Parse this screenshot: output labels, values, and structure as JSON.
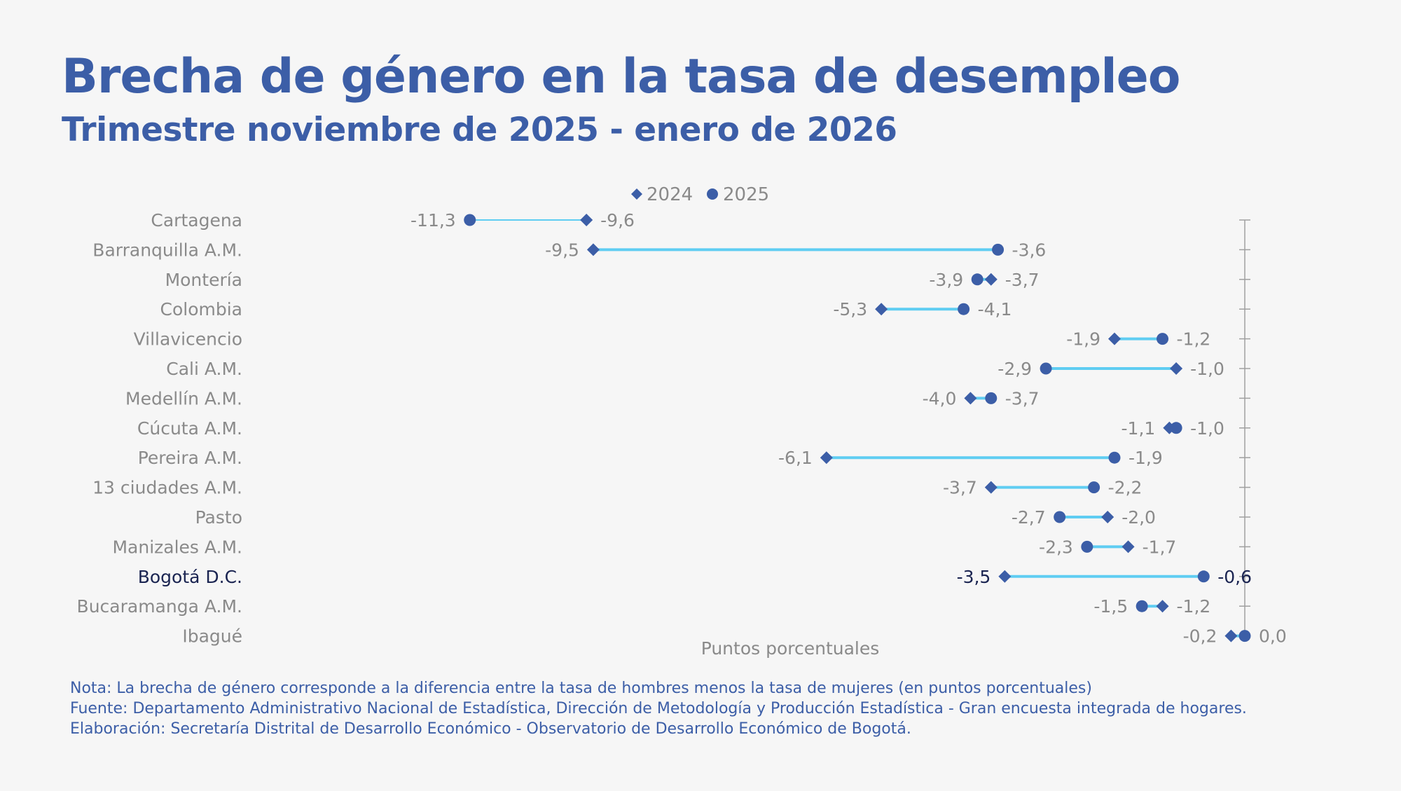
{
  "title": "Brecha de género en la tasa de desempleo",
  "subtitle": "Trimestre noviembre de 2025 - enero de 2026",
  "chart_data": {
    "type": "dumbbell",
    "xlabel": "Puntos porcentuales",
    "legend": [
      {
        "name": "2024",
        "marker": "diamond"
      },
      {
        "name": "2025",
        "marker": "circle"
      }
    ],
    "legend_position": "top-center",
    "grid": false,
    "categories": [
      "Cartagena",
      "Barranquilla A.M.",
      "Montería",
      "Colombia",
      "Villavicencio",
      "Cali A.M.",
      "Medellín A.M.",
      "Cúcuta A.M.",
      "Pereira A.M.",
      "13 ciudades A.M.",
      "Pasto",
      "Manizales A.M.",
      "Bogotá D.C.",
      "Bucaramanga A.M.",
      "Ibagué"
    ],
    "highlight": "Bogotá D.C.",
    "series": [
      {
        "name": "2024",
        "values": [
          -9.6,
          -9.5,
          -3.7,
          -5.3,
          -1.9,
          -1.0,
          -4.0,
          -1.1,
          -6.1,
          -3.7,
          -2.0,
          -1.7,
          -3.5,
          -1.2,
          -0.2
        ]
      },
      {
        "name": "2025",
        "values": [
          -11.3,
          -3.6,
          -3.9,
          -4.1,
          -1.2,
          -2.9,
          -3.7,
          -1.0,
          -1.9,
          -2.2,
          -2.7,
          -2.3,
          -0.6,
          -1.5,
          0.0
        ]
      }
    ],
    "value_labels_2024": [
      "-9,6",
      "-9,5",
      "-3,7",
      "-5,3",
      "-1,9",
      "-1,0",
      "-4,0",
      "-1,1",
      "-6,1",
      "-3,7",
      "-2,0",
      "-1,7",
      "-3,5",
      "-1,2",
      "-0,2"
    ],
    "value_labels_2025": [
      "-11,3",
      "-3,6",
      "-3,9",
      "-4,1",
      "-1,2",
      "-2,9",
      "-3,7",
      "-1,0",
      "-1,9",
      "-2,2",
      "-2,7",
      "-2,3",
      "-0,6",
      "-1,5",
      "0,0"
    ],
    "colors": {
      "marker": "#3c5ea7",
      "line": "#5fcdf2",
      "label": "#8a8a8a",
      "highlight_label": "#1a2451",
      "axis": "#a0a0a0"
    }
  },
  "notes": {
    "nota": "Nota: La brecha de género corresponde a la diferencia entre la tasa de hombres menos la tasa de mujeres (en puntos porcentuales)",
    "fuente": "Fuente: Departamento Administrativo Nacional de Estadística, Dirección de Metodología y Producción Estadística - Gran encuesta integrada de hogares.",
    "elaboracion": "Elaboración: Secretaría Distrital de Desarrollo Económico - Observatorio de Desarrollo Económico de Bogotá."
  }
}
